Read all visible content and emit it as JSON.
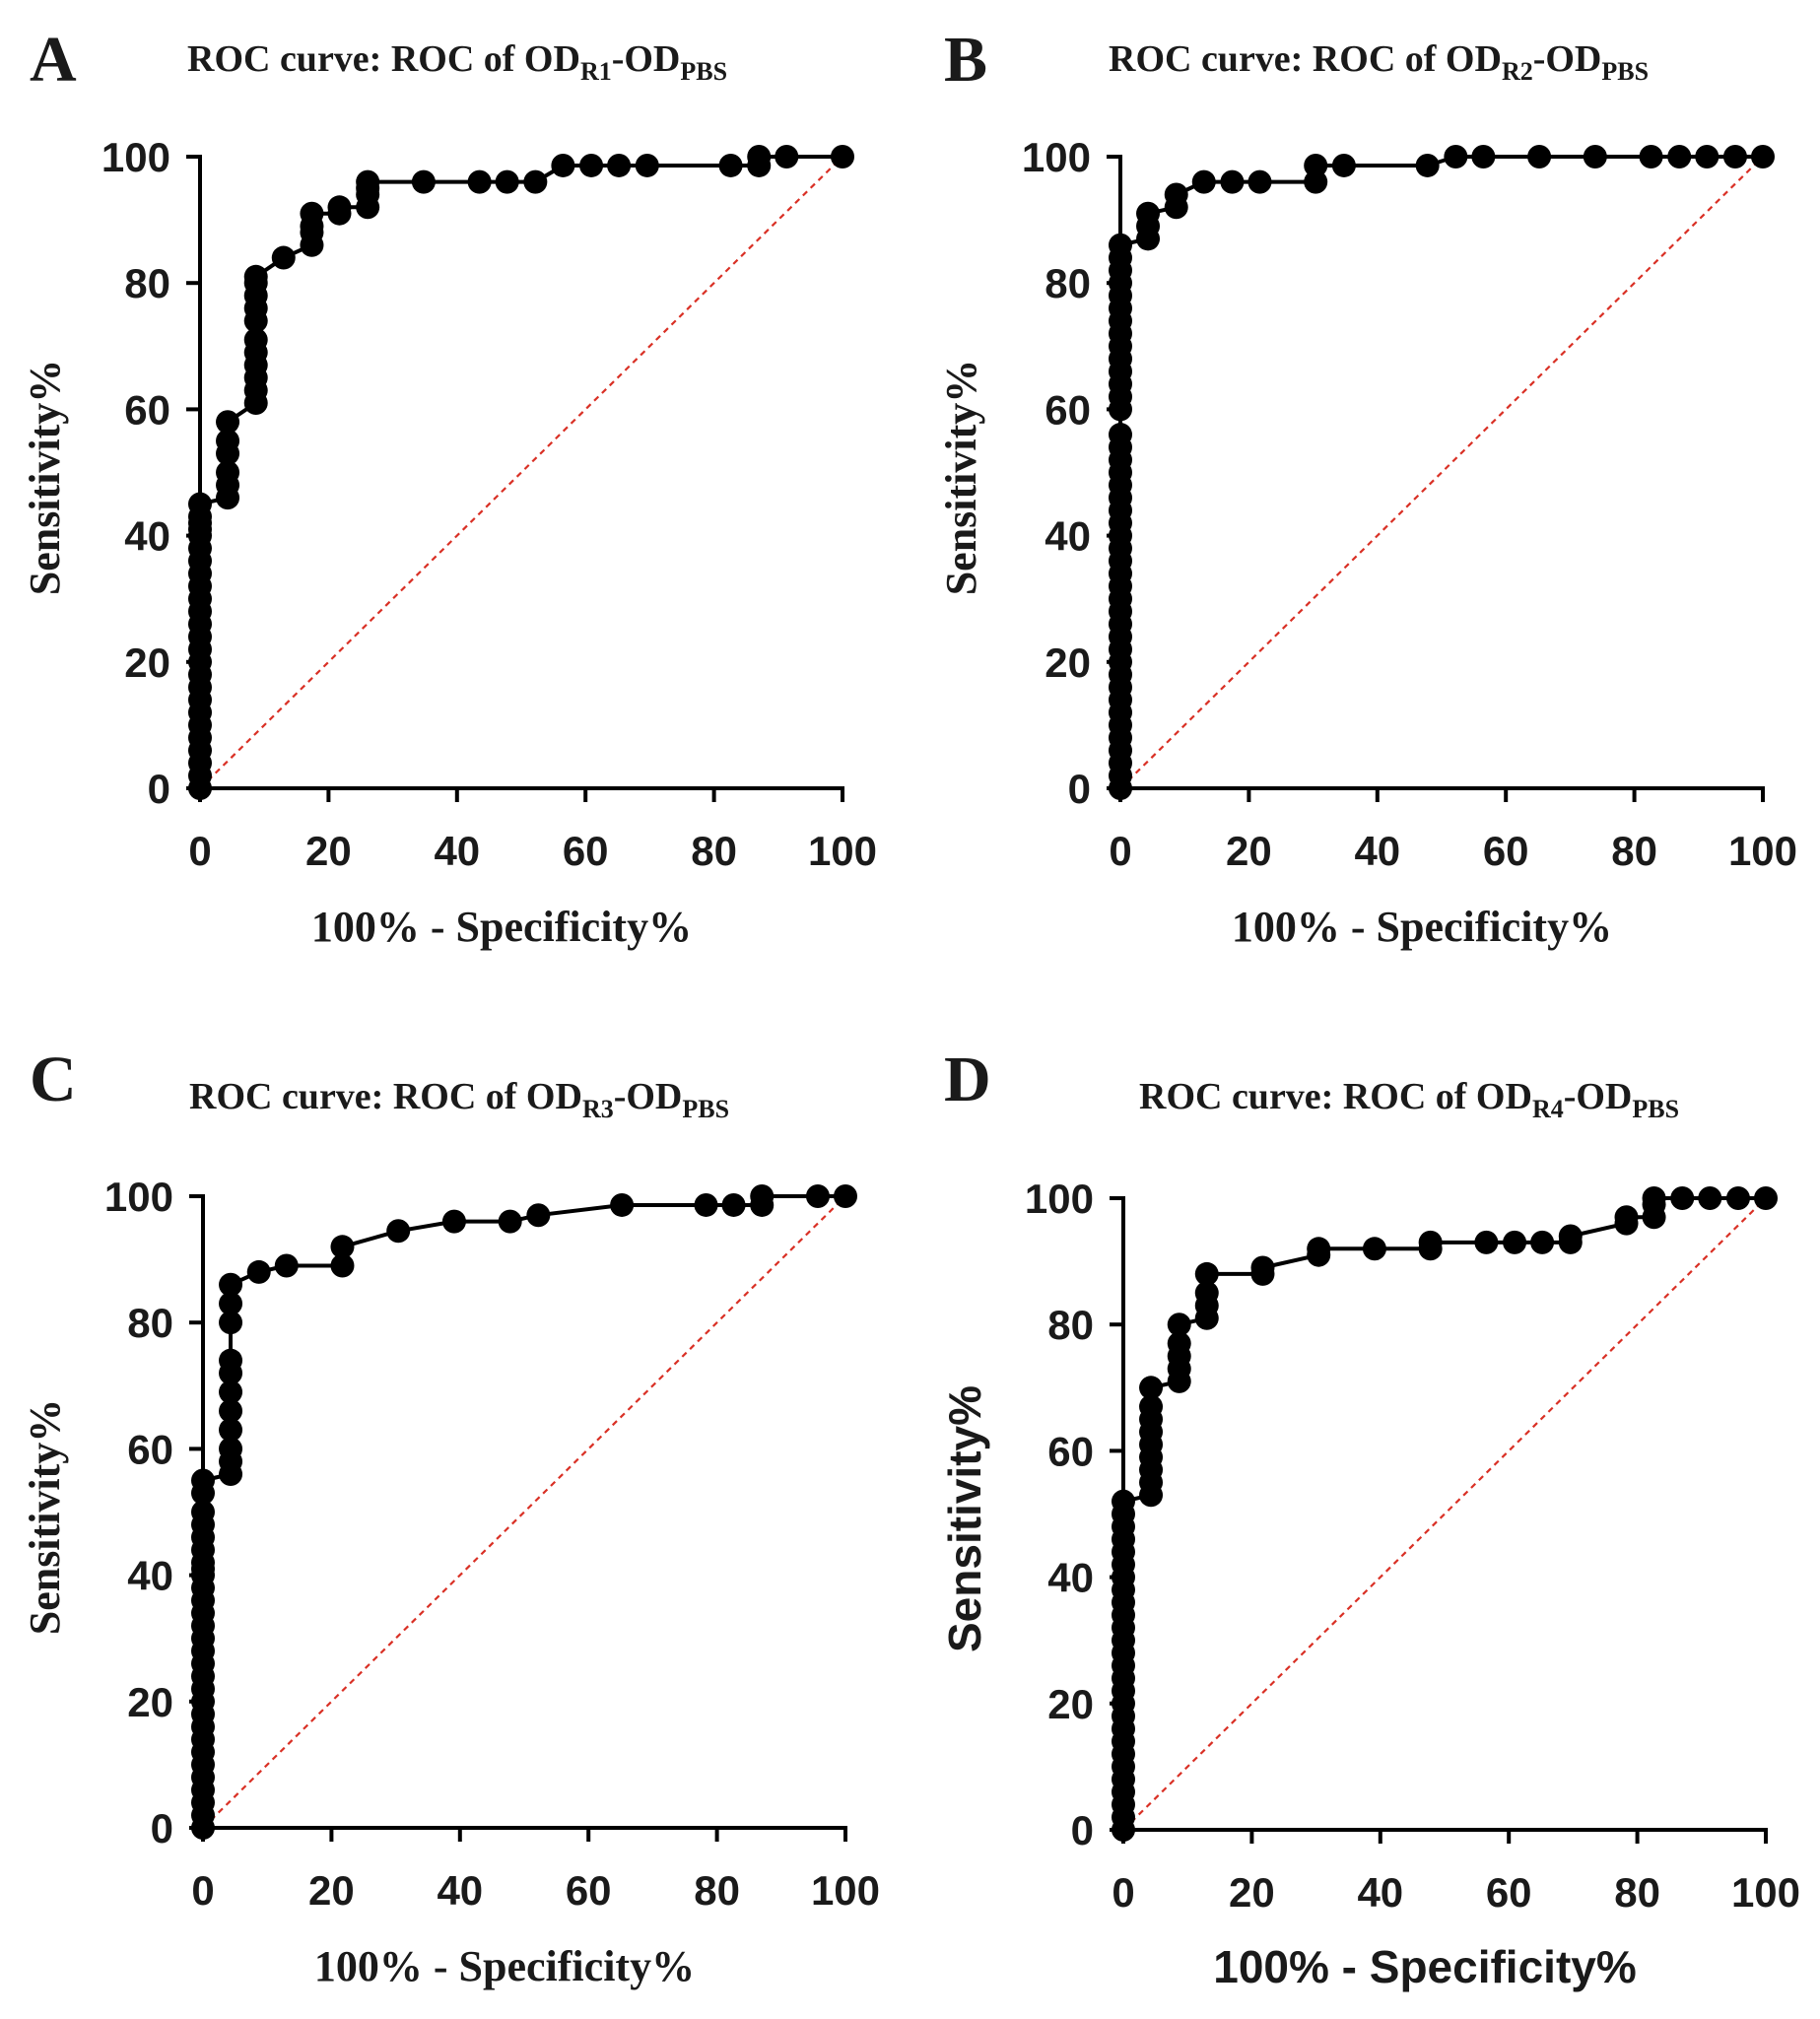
{
  "chart_data": [
    {
      "type": "line",
      "panel": "A",
      "title": "ROC curve: ROC of OD",
      "title_sub1": "R1",
      "title_mid": "-OD",
      "title_sub2": "PBS",
      "xlabel": "100% - Specificity%",
      "ylabel": "Sensitivity%",
      "xlim": [
        0,
        100
      ],
      "ylim": [
        0,
        100
      ],
      "xticks": [
        "0",
        "20",
        "40",
        "60",
        "80",
        "100"
      ],
      "yticks": [
        "0",
        "20",
        "40",
        "60",
        "80",
        "100"
      ],
      "grid": false,
      "colors": {
        "curve": "#000000",
        "reference": "#d93025"
      },
      "reference_line": {
        "x": [
          0,
          100
        ],
        "y": [
          0,
          100
        ]
      },
      "series": [
        {
          "x": [
            0,
            0,
            0,
            0,
            0,
            0,
            0,
            0,
            0,
            0,
            0,
            0,
            0,
            0,
            0,
            0,
            0,
            0,
            0,
            0,
            0,
            0,
            0,
            0,
            0,
            4.3,
            4.3,
            4.3,
            4.3,
            4.3,
            4.3,
            8.7,
            8.7,
            8.7,
            8.7,
            8.7,
            8.7,
            8.7,
            8.7,
            8.7,
            8.7,
            8.7,
            13,
            17.4,
            17.4,
            17.4,
            17.4,
            21.7,
            21.7,
            26.1,
            26.1,
            26.1,
            26.1,
            34.8,
            43.5,
            47.8,
            52.2,
            56.5,
            60.9,
            65.2,
            69.6,
            82.6,
            87,
            87,
            91.3,
            100
          ],
          "y": [
            0,
            2,
            4,
            6,
            8,
            10,
            12,
            14,
            16,
            18,
            20,
            22,
            24,
            26,
            28,
            30,
            32,
            34,
            36,
            38,
            40,
            41,
            42,
            43,
            45,
            46,
            48,
            50,
            53,
            55,
            58,
            61,
            63,
            65,
            67,
            69,
            71,
            74,
            76,
            78,
            80,
            81,
            84,
            86,
            88,
            89,
            91,
            91,
            92,
            92,
            94,
            95,
            96,
            96,
            96,
            96,
            96,
            98.6,
            98.6,
            98.6,
            98.6,
            98.6,
            98.6,
            100,
            100,
            100
          ],
          "markers": true
        }
      ]
    },
    {
      "type": "line",
      "panel": "B",
      "title": "ROC curve: ROC of OD",
      "title_sub1": "R2",
      "title_mid": "-OD",
      "title_sub2": "PBS",
      "xlabel": "100% - Specificity%",
      "ylabel": "Sensitivity%",
      "xlim": [
        0,
        100
      ],
      "ylim": [
        0,
        100
      ],
      "xticks": [
        "0",
        "20",
        "40",
        "60",
        "80",
        "100"
      ],
      "yticks": [
        "0",
        "20",
        "40",
        "60",
        "80",
        "100"
      ],
      "grid": false,
      "colors": {
        "curve": "#000000",
        "reference": "#d93025"
      },
      "reference_line": {
        "x": [
          0,
          100
        ],
        "y": [
          0,
          100
        ]
      },
      "series": [
        {
          "x": [
            0,
            0,
            0,
            0,
            0,
            0,
            0,
            0,
            0,
            0,
            0,
            0,
            0,
            0,
            0,
            0,
            0,
            0,
            0,
            0,
            0,
            0,
            0,
            0,
            0,
            0,
            0,
            0,
            0,
            0,
            0,
            0,
            0,
            0,
            0,
            0,
            0,
            0,
            0,
            0,
            0,
            0,
            0,
            4.3,
            4.3,
            4.3,
            8.7,
            8.7,
            13,
            17.4,
            21.7,
            30.4,
            30.4,
            34.8,
            47.8,
            52.2,
            56.5,
            65.2,
            73.9,
            82.6,
            87,
            91.3,
            95.7,
            100
          ],
          "y": [
            0,
            2,
            4,
            6,
            8,
            10,
            12,
            14,
            16,
            18,
            20,
            22,
            24,
            26,
            28,
            30,
            32,
            34,
            36,
            38,
            40,
            42,
            44,
            46,
            48,
            50,
            52,
            54,
            56,
            60,
            62,
            64,
            66,
            68,
            70,
            72,
            74,
            76,
            78,
            80,
            82,
            84,
            86,
            87,
            89,
            91,
            92,
            94,
            96,
            96,
            96,
            96,
            98.6,
            98.6,
            98.6,
            100,
            100,
            100,
            100,
            100,
            100,
            100,
            100,
            100
          ],
          "markers": true
        }
      ]
    },
    {
      "type": "line",
      "panel": "C",
      "title": "ROC curve: ROC of OD",
      "title_sub1": "R3",
      "title_mid": "-OD",
      "title_sub2": "PBS",
      "xlabel": "100% - Specificity%",
      "ylabel": "Sensitivity%",
      "xlim": [
        0,
        100
      ],
      "ylim": [
        0,
        100
      ],
      "xticks": [
        "0",
        "20",
        "40",
        "60",
        "80",
        "100"
      ],
      "yticks": [
        "0",
        "20",
        "40",
        "60",
        "80",
        "100"
      ],
      "grid": false,
      "colors": {
        "curve": "#000000",
        "reference": "#d93025"
      },
      "reference_line": {
        "x": [
          0,
          100
        ],
        "y": [
          0,
          100
        ]
      },
      "series": [
        {
          "x": [
            0,
            0,
            0,
            0,
            0,
            0,
            0,
            0,
            0,
            0,
            0,
            0,
            0,
            0,
            0,
            0,
            0,
            0,
            0,
            0,
            0,
            0,
            0,
            0,
            0,
            0,
            0,
            0,
            0,
            4.3,
            4.3,
            4.3,
            4.3,
            4.3,
            4.3,
            4.3,
            4.3,
            4.3,
            4.3,
            4.3,
            8.7,
            13,
            21.7,
            21.7,
            30.4,
            39.1,
            47.8,
            52.2,
            65.2,
            78.3,
            82.6,
            87,
            87,
            95.7,
            100
          ],
          "y": [
            0,
            2,
            4,
            6,
            8,
            10,
            12,
            14,
            16,
            18,
            20,
            22,
            24,
            26,
            28,
            30,
            32,
            34,
            36,
            38,
            40,
            41,
            42,
            44,
            46,
            48,
            50,
            53,
            55,
            56,
            58,
            60,
            63,
            66,
            69,
            72,
            74,
            80,
            83,
            86,
            88,
            89,
            89,
            92,
            94.5,
            96,
            96,
            97,
            98.6,
            98.6,
            98.6,
            98.6,
            100,
            100,
            100
          ],
          "markers": true
        }
      ]
    },
    {
      "type": "line",
      "panel": "D",
      "title": "ROC curve: ROC of OD",
      "title_sub1": "R4",
      "title_mid": "-OD",
      "title_sub2": "PBS",
      "xlabel": "100% - Specificity%",
      "ylabel": "Sensitivity%",
      "xlim": [
        0,
        100
      ],
      "ylim": [
        0,
        100
      ],
      "xticks": [
        "0",
        "20",
        "40",
        "60",
        "80",
        "100"
      ],
      "yticks": [
        "0",
        "20",
        "40",
        "60",
        "80",
        "100"
      ],
      "grid": false,
      "colors": {
        "curve": "#000000",
        "reference": "#d93025"
      },
      "reference_line": {
        "x": [
          0,
          100
        ],
        "y": [
          0,
          100
        ]
      },
      "series": [
        {
          "x": [
            0,
            0,
            0,
            0,
            0,
            0,
            0,
            0,
            0,
            0,
            0,
            0,
            0,
            0,
            0,
            0,
            0,
            0,
            0,
            0,
            0,
            0,
            0,
            0,
            0,
            0,
            0,
            4.3,
            4.3,
            4.3,
            4.3,
            4.3,
            4.3,
            4.3,
            4.3,
            4.3,
            8.7,
            8.7,
            8.7,
            8.7,
            8.7,
            13,
            13,
            13,
            13,
            21.7,
            21.7,
            30.4,
            30.4,
            39.1,
            47.8,
            47.8,
            56.5,
            60.9,
            65.2,
            69.6,
            69.6,
            78.3,
            78.3,
            82.6,
            82.6,
            82.6,
            87,
            91.3,
            95.7,
            100
          ],
          "y": [
            0,
            2,
            4,
            6,
            8,
            10,
            12,
            14,
            16,
            18,
            20,
            22,
            24,
            26,
            28,
            30,
            32,
            34,
            36,
            38,
            40,
            42,
            44,
            46,
            48,
            50,
            52,
            53,
            55,
            57,
            59,
            61,
            63,
            65,
            67,
            70,
            71,
            73,
            75,
            77,
            80,
            81,
            83,
            85,
            88,
            88,
            89,
            91,
            92,
            92,
            92,
            93,
            93,
            93,
            93,
            93,
            94,
            96,
            97,
            97,
            99,
            100,
            100,
            100,
            100,
            100
          ],
          "markers": true
        }
      ]
    }
  ]
}
